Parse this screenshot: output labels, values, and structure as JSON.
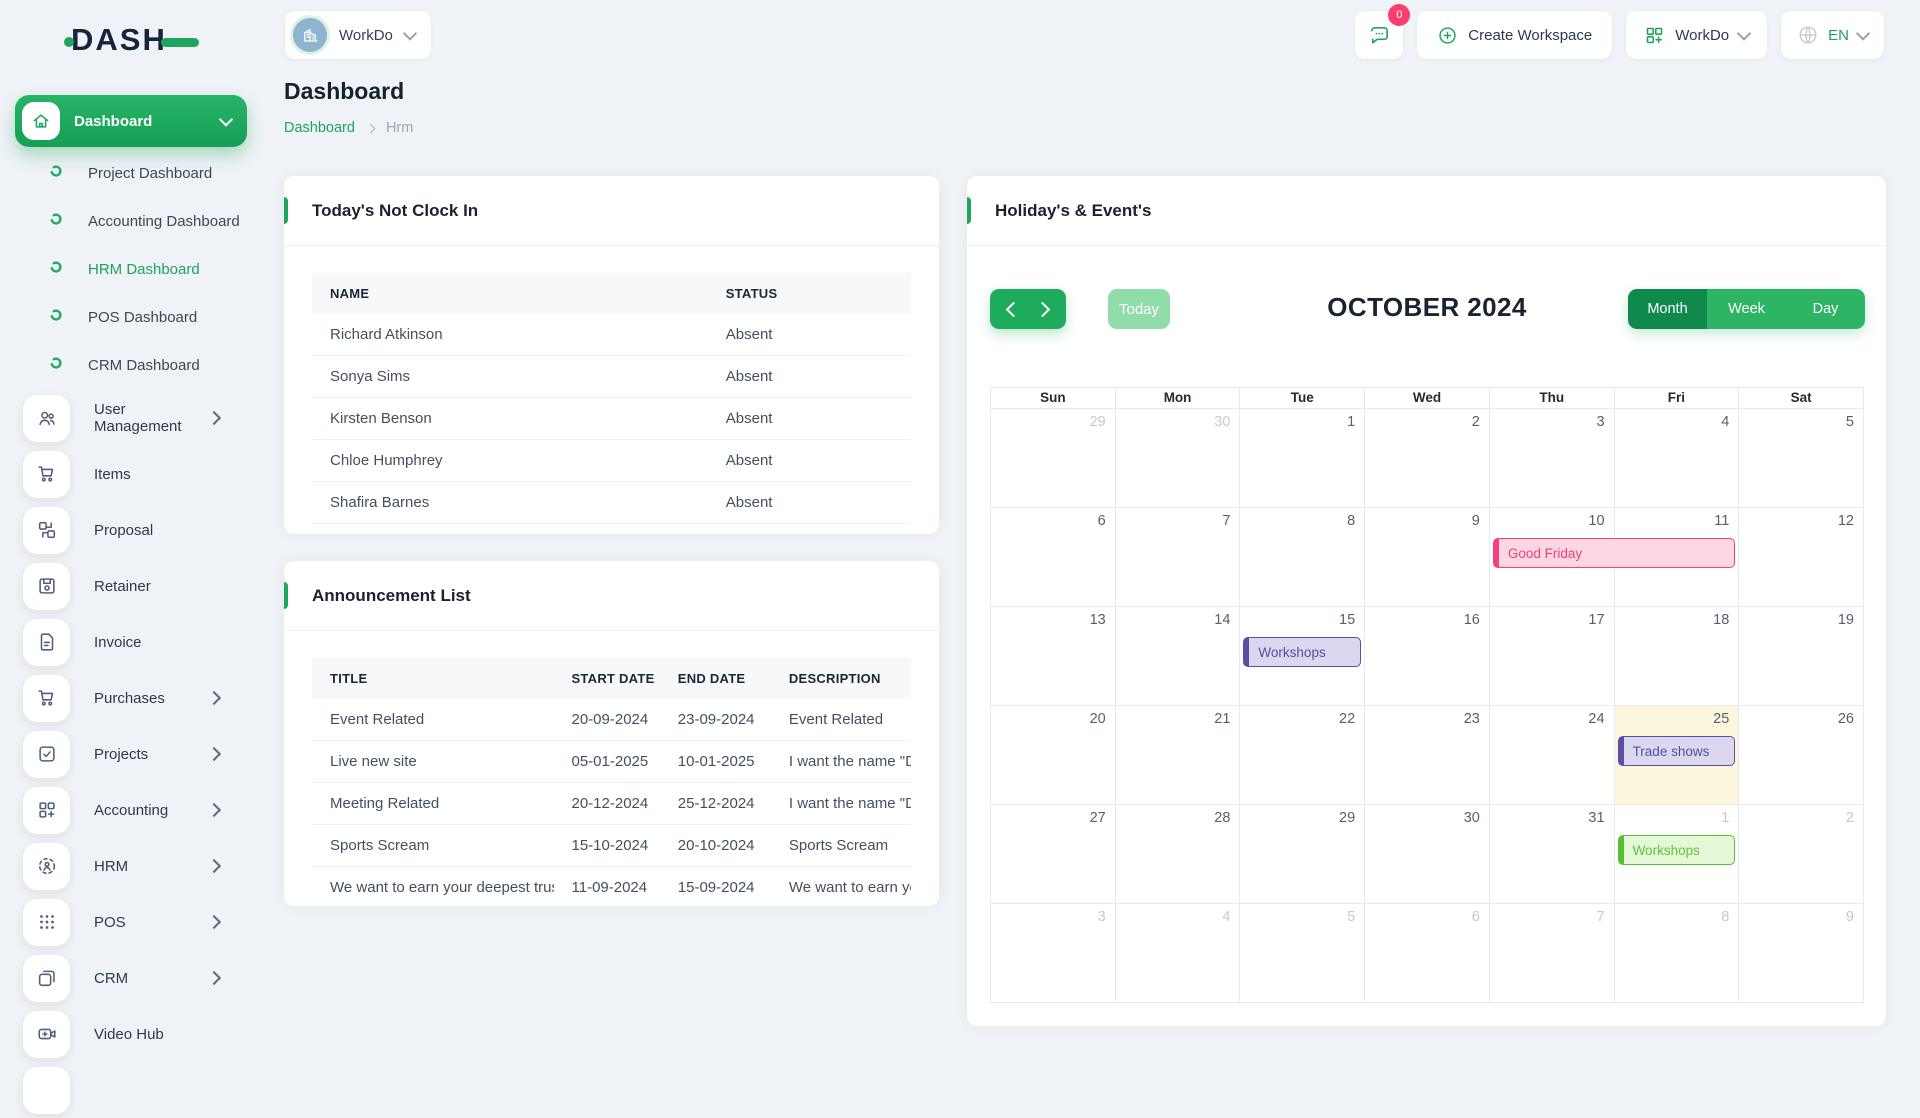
{
  "brand": {
    "logo_text": "DASH"
  },
  "header": {
    "workspace_pill": {
      "label": "WorkDo"
    },
    "chat_badge": "0",
    "create_workspace_label": "Create Workspace",
    "workdo_label": "WorkDo",
    "language_label": "EN"
  },
  "sidebar": {
    "active": {
      "label": "Dashboard"
    },
    "sub_items": [
      {
        "label": "Project Dashboard",
        "active": false
      },
      {
        "label": "Accounting Dashboard",
        "active": false
      },
      {
        "label": "HRM Dashboard",
        "active": true
      },
      {
        "label": "POS Dashboard",
        "active": false
      },
      {
        "label": "CRM Dashboard",
        "active": false
      }
    ],
    "menu": [
      {
        "label": "User Management",
        "icon": "users",
        "chevron": true
      },
      {
        "label": "Items",
        "icon": "cart",
        "chevron": false
      },
      {
        "label": "Proposal",
        "icon": "proposal",
        "chevron": false
      },
      {
        "label": "Retainer",
        "icon": "retainer",
        "chevron": false
      },
      {
        "label": "Invoice",
        "icon": "invoice",
        "chevron": false
      },
      {
        "label": "Purchases",
        "icon": "cart",
        "chevron": true
      },
      {
        "label": "Projects",
        "icon": "projects",
        "chevron": true
      },
      {
        "label": "Accounting",
        "icon": "accounting",
        "chevron": true
      },
      {
        "label": "HRM",
        "icon": "hrm",
        "chevron": true
      },
      {
        "label": "POS",
        "icon": "pos",
        "chevron": true
      },
      {
        "label": "CRM",
        "icon": "crm",
        "chevron": true
      },
      {
        "label": "Video Hub",
        "icon": "video",
        "chevron": false
      }
    ]
  },
  "page": {
    "title": "Dashboard",
    "breadcrumb": {
      "root": "Dashboard",
      "current": "Hrm"
    }
  },
  "not_clock_in": {
    "title": "Today's Not Clock In",
    "columns": [
      "NAME",
      "STATUS"
    ],
    "rows": [
      [
        "Richard Atkinson",
        "Absent"
      ],
      [
        "Sonya Sims",
        "Absent"
      ],
      [
        "Kirsten Benson",
        "Absent"
      ],
      [
        "Chloe Humphrey",
        "Absent"
      ],
      [
        "Shafira Barnes",
        "Absent"
      ]
    ]
  },
  "announcements": {
    "title": "Announcement List",
    "columns": [
      "TITLE",
      "START DATE",
      "END DATE",
      "DESCRIPTION"
    ],
    "rows": [
      [
        "Event Related",
        "20-09-2024",
        "23-09-2024",
        "Event Related"
      ],
      [
        "Live new site",
        "05-01-2025",
        "10-01-2025",
        "I want the name \"D"
      ],
      [
        "Meeting Related",
        "20-12-2024",
        "25-12-2024",
        "I want the name \"D"
      ],
      [
        "Sports Scream",
        "15-10-2024",
        "20-10-2024",
        "Sports Scream"
      ],
      [
        "We want to earn your deepest trust",
        "11-09-2024",
        "15-09-2024",
        "We want to earn yo"
      ]
    ]
  },
  "calendar": {
    "card_title": "Holiday's & Event's",
    "month_title": "OCTOBER 2024",
    "toolbar": {
      "today_label": "Today",
      "views": [
        "Month",
        "Week",
        "Day"
      ],
      "active_view": "Month"
    },
    "day_headers": [
      "Sun",
      "Mon",
      "Tue",
      "Wed",
      "Thu",
      "Fri",
      "Sat"
    ],
    "weeks": [
      [
        {
          "d": 29,
          "m": 1
        },
        {
          "d": 30,
          "m": 1
        },
        {
          "d": 1
        },
        {
          "d": 2
        },
        {
          "d": 3
        },
        {
          "d": 4
        },
        {
          "d": 5
        }
      ],
      [
        {
          "d": 6
        },
        {
          "d": 7
        },
        {
          "d": 8
        },
        {
          "d": 9
        },
        {
          "d": 10
        },
        {
          "d": 11
        },
        {
          "d": 12
        }
      ],
      [
        {
          "d": 13
        },
        {
          "d": 14
        },
        {
          "d": 15
        },
        {
          "d": 16
        },
        {
          "d": 17
        },
        {
          "d": 18
        },
        {
          "d": 19
        }
      ],
      [
        {
          "d": 20
        },
        {
          "d": 21
        },
        {
          "d": 22
        },
        {
          "d": 23
        },
        {
          "d": 24
        },
        {
          "d": 25,
          "today": 1
        },
        {
          "d": 26
        }
      ],
      [
        {
          "d": 27
        },
        {
          "d": 28
        },
        {
          "d": 29
        },
        {
          "d": 30
        },
        {
          "d": 31
        },
        {
          "d": 1,
          "m": 1
        },
        {
          "d": 2,
          "m": 1
        }
      ],
      [
        {
          "d": 3,
          "m": 1
        },
        {
          "d": 4,
          "m": 1
        },
        {
          "d": 5,
          "m": 1
        },
        {
          "d": 6,
          "m": 1
        },
        {
          "d": 7,
          "m": 1
        },
        {
          "d": 8,
          "m": 1
        },
        {
          "d": 9,
          "m": 1
        }
      ]
    ],
    "events": [
      {
        "label": "Good Friday",
        "week": 1,
        "col": 4,
        "span": 2,
        "color": "pink"
      },
      {
        "label": "Workshops",
        "week": 2,
        "col": 2,
        "span": 1,
        "color": "purple"
      },
      {
        "label": "Trade shows",
        "week": 3,
        "col": 5,
        "span": 1,
        "color": "purple"
      },
      {
        "label": "Workshops",
        "week": 4,
        "col": 5,
        "span": 1,
        "color": "green"
      }
    ]
  },
  "colors": {
    "accent_green": "#1fa65c",
    "active_view_green": "#0f8a4c",
    "today_cell_yellow": "#fcf6dd",
    "event_pink": "#f4407f",
    "event_purple": "#5a4fa0",
    "event_green": "#58bf33",
    "badge_red": "#fb3e6e"
  }
}
